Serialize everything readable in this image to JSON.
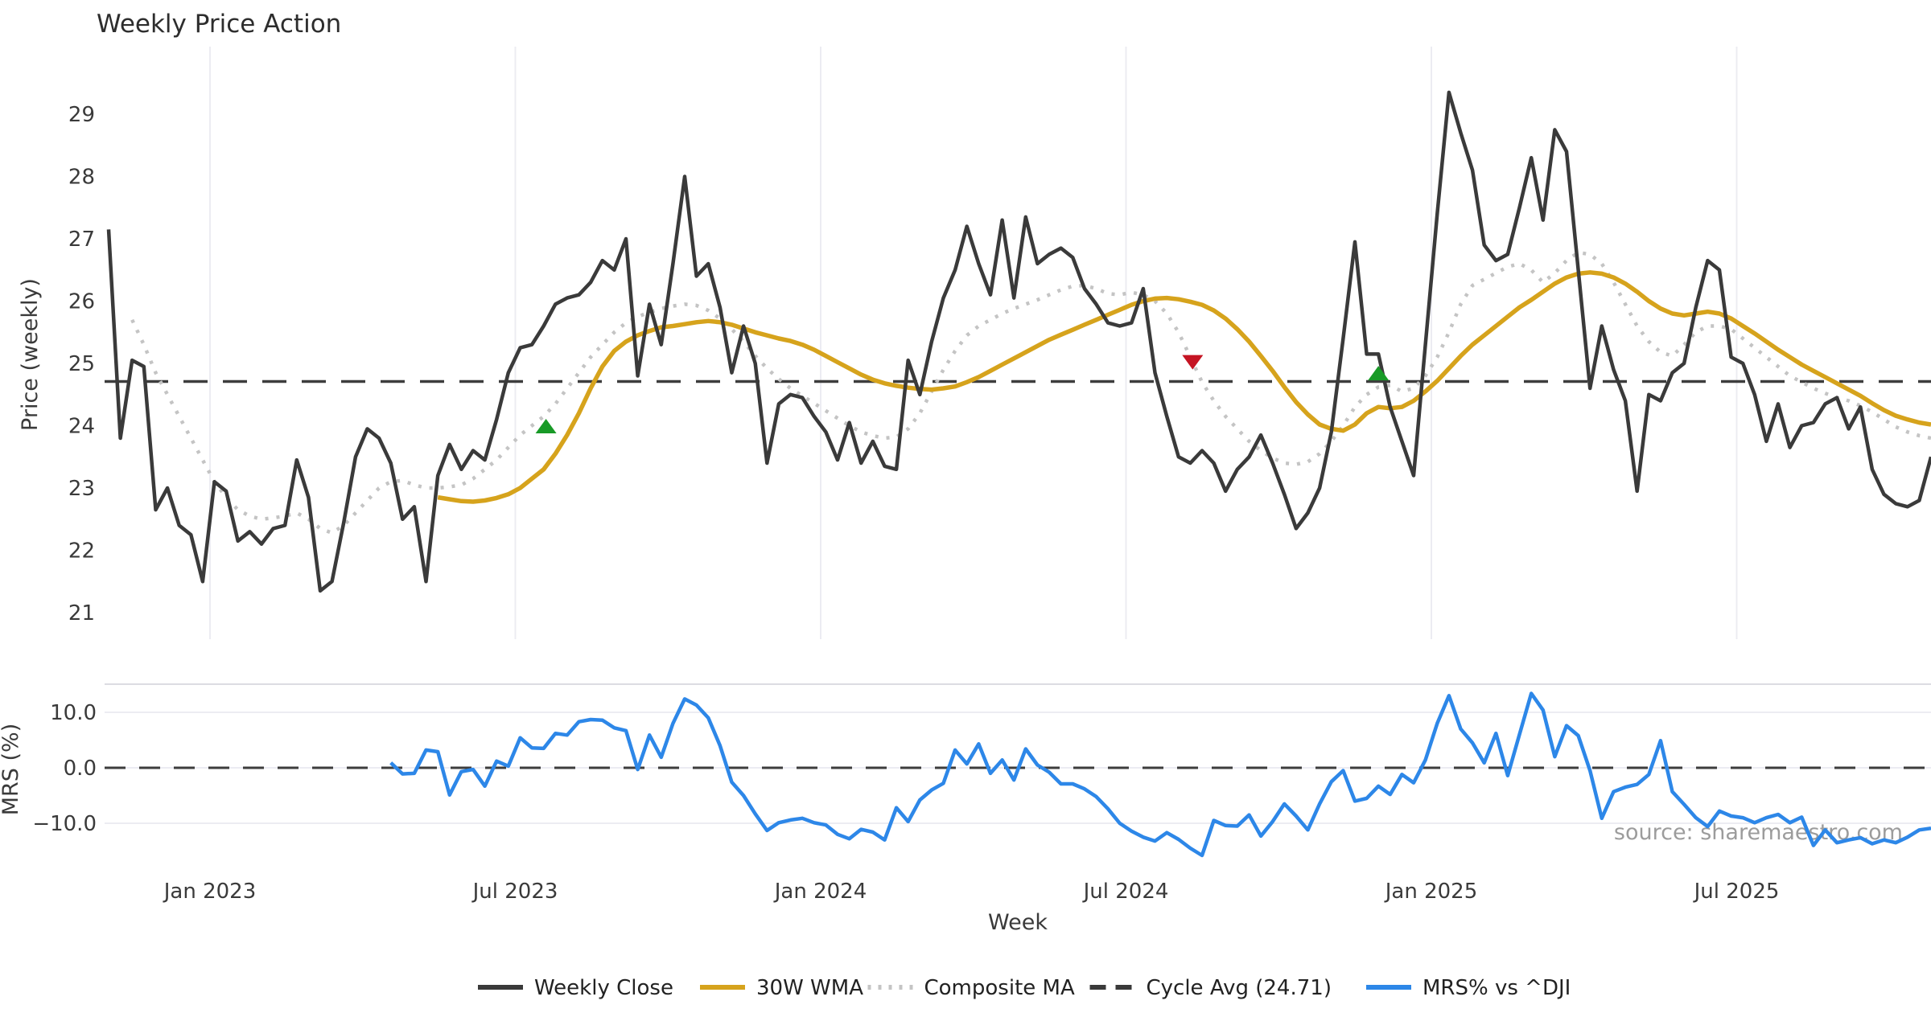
{
  "chart_data": {
    "type": "line",
    "title": "Weekly Price Action",
    "xlabel": "Week",
    "source": "source: sharemaestro.com",
    "x_tick_labels": [
      "Jan 2023",
      "Jul 2023",
      "Jan 2024",
      "Jul 2024",
      "Jan 2025",
      "Jul 2025"
    ],
    "legend_position": "bottom-center",
    "grid": "vertical-date-lines-on-price-panel, horizontal-lines-on-mrs-panel",
    "legend": [
      {
        "label": "Weekly Close",
        "color": "#3a3a3a",
        "dash": "solid"
      },
      {
        "label": "30W WMA",
        "color": "#d6a31c",
        "dash": "solid"
      },
      {
        "label": "Composite MA",
        "color": "#c4c4c4",
        "dash": "dot"
      },
      {
        "label": "Cycle Avg (24.71)",
        "color": "#3a3a3a",
        "dash": "dash"
      },
      {
        "label": "MRS% vs ^DJI",
        "color": "#2d87e8",
        "dash": "solid"
      }
    ],
    "panels": [
      {
        "name": "price",
        "ylabel": "Price (weekly)",
        "yticks": [
          29,
          28,
          27,
          26,
          25,
          24,
          23,
          22,
          21
        ],
        "ylim": [
          20.4,
          30.1
        ],
        "cycle_avg": 24.71,
        "series": [
          {
            "name": "Weekly Close",
            "color": "#3a3a3a",
            "dash": "solid",
            "width": 4.5,
            "values": [
              27.15,
              23.8,
              25.05,
              24.95,
              22.65,
              23.0,
              22.4,
              22.25,
              21.5,
              23.1,
              22.95,
              22.15,
              22.3,
              22.1,
              22.35,
              22.4,
              23.45,
              22.85,
              21.35,
              21.5,
              22.45,
              23.5,
              23.95,
              23.8,
              23.4,
              22.5,
              22.7,
              21.5,
              23.2,
              23.7,
              23.3,
              23.6,
              23.45,
              24.1,
              24.85,
              25.25,
              25.3,
              25.6,
              25.95,
              26.05,
              26.1,
              26.3,
              26.65,
              26.5,
              27.0,
              24.8,
              25.95,
              25.3,
              26.6,
              28.0,
              26.4,
              26.6,
              25.9,
              24.85,
              25.6,
              25.0,
              23.4,
              24.35,
              24.5,
              24.45,
              24.15,
              23.9,
              23.45,
              24.05,
              23.4,
              23.75,
              23.35,
              23.3,
              25.05,
              24.5,
              25.35,
              26.05,
              26.5,
              27.2,
              26.6,
              26.1,
              27.3,
              26.05,
              27.35,
              26.6,
              26.75,
              26.85,
              26.7,
              26.2,
              25.95,
              25.65,
              25.6,
              25.65,
              26.2,
              24.85,
              24.15,
              23.5,
              23.4,
              23.6,
              23.4,
              22.95,
              23.3,
              23.5,
              23.85,
              23.4,
              22.9,
              22.35,
              22.6,
              23.0,
              23.9,
              25.4,
              26.95,
              25.15,
              25.15,
              24.3,
              23.75,
              23.2,
              25.3,
              27.4,
              29.35,
              28.7,
              28.1,
              26.9,
              26.65,
              26.75,
              27.5,
              28.3,
              27.3,
              28.75,
              28.4,
              26.5,
              24.6,
              25.6,
              24.9,
              24.4,
              22.95,
              24.5,
              24.4,
              24.85,
              25.0,
              25.9,
              26.65,
              26.5,
              25.1,
              25.0,
              24.5,
              23.75,
              24.35,
              23.65,
              24.0,
              24.05,
              24.35,
              24.45,
              23.95,
              24.3,
              23.3,
              22.9,
              22.75,
              22.7,
              22.8,
              23.5
            ]
          },
          {
            "name": "30W WMA",
            "color": "#d6a31c",
            "dash": "solid",
            "width": 5.5,
            "values": [
              null,
              null,
              null,
              null,
              null,
              null,
              null,
              null,
              null,
              null,
              null,
              null,
              null,
              null,
              null,
              null,
              null,
              null,
              null,
              null,
              null,
              null,
              null,
              null,
              null,
              null,
              null,
              null,
              22.85,
              22.82,
              22.79,
              22.78,
              22.8,
              22.84,
              22.9,
              23.0,
              23.15,
              23.3,
              23.55,
              23.85,
              24.2,
              24.6,
              24.95,
              25.2,
              25.35,
              25.45,
              25.52,
              25.58,
              25.6,
              25.63,
              25.66,
              25.68,
              25.66,
              25.62,
              25.56,
              25.5,
              25.45,
              25.4,
              25.36,
              25.3,
              25.22,
              25.12,
              25.02,
              24.92,
              24.82,
              24.74,
              24.68,
              24.64,
              24.61,
              24.59,
              24.58,
              24.6,
              24.63,
              24.7,
              24.78,
              24.88,
              24.98,
              25.08,
              25.18,
              25.28,
              25.38,
              25.46,
              25.54,
              25.62,
              25.7,
              25.78,
              25.86,
              25.94,
              26.0,
              26.04,
              26.05,
              26.03,
              25.99,
              25.94,
              25.85,
              25.72,
              25.55,
              25.35,
              25.12,
              24.88,
              24.62,
              24.38,
              24.18,
              24.02,
              23.95,
              23.92,
              24.02,
              24.2,
              24.3,
              24.28,
              24.3,
              24.4,
              24.55,
              24.72,
              24.92,
              25.12,
              25.3,
              25.45,
              25.6,
              25.75,
              25.9,
              26.02,
              26.15,
              26.28,
              26.38,
              26.44,
              26.46,
              26.44,
              26.38,
              26.28,
              26.15,
              26.0,
              25.88,
              25.8,
              25.77,
              25.8,
              25.83,
              25.8,
              25.72,
              25.6,
              25.48,
              25.35,
              25.22,
              25.1,
              24.98,
              24.88,
              24.78,
              24.68,
              24.58,
              24.48,
              24.36,
              24.25,
              24.16,
              24.1,
              24.05,
              24.02
            ]
          },
          {
            "name": "Composite MA",
            "color": "#c4c4c4",
            "dash": "dot",
            "width": 4.5,
            "values": [
              null,
              null,
              25.7,
              25.3,
              24.85,
              24.5,
              24.15,
              23.8,
              23.45,
              23.1,
              22.85,
              22.65,
              22.55,
              22.5,
              22.52,
              22.55,
              22.6,
              22.5,
              22.35,
              22.28,
              22.4,
              22.6,
              22.8,
              23.0,
              23.1,
              23.12,
              23.05,
              23.0,
              23.0,
              23.02,
              23.05,
              23.15,
              23.3,
              23.45,
              23.65,
              23.85,
              24.0,
              24.15,
              24.35,
              24.6,
              24.85,
              25.1,
              25.3,
              25.5,
              25.65,
              25.75,
              25.82,
              25.88,
              25.92,
              25.95,
              25.93,
              25.85,
              25.72,
              25.55,
              25.35,
              25.12,
              24.92,
              24.75,
              24.6,
              24.48,
              24.36,
              24.24,
              24.12,
              24.0,
              23.9,
              23.84,
              23.8,
              23.82,
              23.95,
              24.2,
              24.55,
              24.9,
              25.2,
              25.45,
              25.6,
              25.7,
              25.8,
              25.88,
              25.95,
              26.02,
              26.1,
              26.18,
              26.24,
              26.25,
              26.2,
              26.12,
              26.1,
              26.14,
              26.1,
              26.0,
              25.8,
              25.5,
              25.1,
              24.7,
              24.4,
              24.15,
              23.95,
              23.75,
              23.6,
              23.48,
              23.4,
              23.38,
              23.42,
              23.55,
              23.75,
              24.0,
              24.3,
              24.5,
              24.62,
              24.65,
              24.55,
              24.6,
              24.8,
              25.1,
              25.5,
              25.95,
              26.25,
              26.35,
              26.45,
              26.55,
              26.6,
              26.5,
              26.3,
              26.45,
              26.65,
              26.78,
              26.75,
              26.6,
              26.3,
              25.95,
              25.6,
              25.35,
              25.18,
              25.12,
              25.3,
              25.5,
              25.6,
              25.6,
              25.55,
              25.4,
              25.25,
              25.1,
              24.95,
              24.8,
              24.7,
              24.6,
              24.52,
              24.45,
              24.4,
              24.32,
              24.22,
              24.1,
              23.98,
              23.9,
              23.84,
              23.8
            ]
          }
        ],
        "markers": [
          {
            "shape": "triangle-up",
            "color": "#189a27",
            "week": 37.2,
            "price": 23.98
          },
          {
            "shape": "triangle-down",
            "color": "#c51423",
            "week": 92.2,
            "price": 25.03
          },
          {
            "shape": "triangle-up",
            "color": "#189a27",
            "week": 108,
            "price": 24.83
          }
        ]
      },
      {
        "name": "mrs",
        "ylabel": "MRS (%)",
        "yticks": [
          10.0,
          0.0,
          -10.0
        ],
        "ytick_labels": [
          "10.0",
          "0.0",
          "−10.0"
        ],
        "ylim": [
          -16.4,
          15.1
        ],
        "zero_line": 0.0,
        "series": [
          {
            "name": "MRS% vs ^DJI",
            "color": "#2d87e8",
            "dash": "solid",
            "width": 4.5,
            "values": [
              null,
              null,
              null,
              null,
              null,
              null,
              null,
              null,
              null,
              null,
              null,
              null,
              null,
              null,
              null,
              null,
              null,
              null,
              null,
              null,
              null,
              null,
              null,
              null,
              0.9,
              -1.1,
              -1.0,
              3.2,
              2.9,
              -4.9,
              -0.7,
              -0.3,
              -3.3,
              1.2,
              0.3,
              5.4,
              3.6,
              3.5,
              6.2,
              5.9,
              8.3,
              8.7,
              8.6,
              7.2,
              6.7,
              -0.3,
              5.9,
              1.9,
              8.0,
              12.4,
              11.3,
              9.0,
              4.0,
              -2.6,
              -5.0,
              -8.3,
              -11.3,
              -9.9,
              -9.4,
              -9.1,
              -9.9,
              -10.3,
              -12.0,
              -12.8,
              -11.1,
              -11.6,
              -13.0,
              -7.2,
              -9.7,
              -5.8,
              -4.0,
              -2.8,
              3.2,
              0.7,
              4.3,
              -1.0,
              1.4,
              -2.2,
              3.4,
              0.5,
              -0.8,
              -2.9,
              -2.9,
              -3.8,
              -5.2,
              -7.4,
              -10.0,
              -11.4,
              -12.5,
              -13.2,
              -11.7,
              -12.9,
              -14.5,
              -15.8,
              -9.5,
              -10.4,
              -10.5,
              -8.5,
              -12.3,
              -9.7,
              -6.5,
              -8.7,
              -11.2,
              -6.5,
              -2.5,
              -0.5,
              -6.0,
              -5.5,
              -3.3,
              -4.8,
              -1.2,
              -2.7,
              1.4,
              8.0,
              13.0,
              7.0,
              4.5,
              0.9,
              6.2,
              -1.4,
              6.0,
              13.4,
              10.4,
              2.0,
              7.6,
              5.8,
              -0.5,
              -9.1,
              -4.3,
              -3.5,
              -3.0,
              -1.2,
              4.9,
              -4.3,
              -6.6,
              -9.0,
              -10.6,
              -7.8,
              -8.7,
              -9.0,
              -9.9,
              -9.0,
              -8.4,
              -9.9,
              -8.9,
              -14.0,
              -11.2,
              -13.5,
              -13.0,
              -12.6,
              -13.7,
              -13.0,
              -13.5,
              -12.5,
              -11.2,
              -10.9
            ]
          }
        ]
      }
    ]
  }
}
